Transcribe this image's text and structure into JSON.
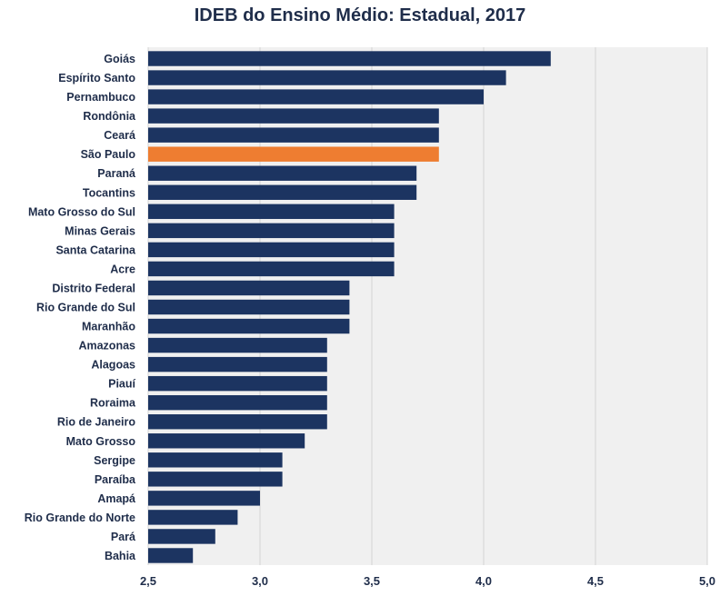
{
  "chart_data": {
    "type": "bar",
    "orientation": "horizontal",
    "title": "IDEB do Ensino Médio: Estadual, 2017",
    "xlabel": "",
    "ylabel": "",
    "xlim": [
      2.5,
      5.0
    ],
    "xticks": [
      2.5,
      3.0,
      3.5,
      4.0,
      4.5,
      5.0
    ],
    "xtick_labels": [
      "2,5",
      "3,0",
      "3,5",
      "4,0",
      "4,5",
      "5,0"
    ],
    "grid": "vertical gridlines",
    "plot_background": "#f0f0f0",
    "bar_color": "#1c3461",
    "highlight_color": "#ee7d31",
    "highlight_category": "São Paulo",
    "categories": [
      "Goiás",
      "Espírito Santo",
      "Pernambuco",
      "Rondônia",
      "Ceará",
      "São Paulo",
      "Paraná",
      "Tocantins",
      "Mato Grosso do Sul",
      "Minas Gerais",
      "Santa Catarina",
      "Acre",
      "Distrito Federal",
      "Rio Grande do Sul",
      "Maranhão",
      "Amazonas",
      "Alagoas",
      "Piauí",
      "Roraima",
      "Rio de Janeiro",
      "Mato Grosso",
      "Sergipe",
      "Paraíba",
      "Amapá",
      "Rio Grande do Norte",
      "Pará",
      "Bahia"
    ],
    "values": [
      4.3,
      4.1,
      4.0,
      3.8,
      3.8,
      3.8,
      3.7,
      3.7,
      3.6,
      3.6,
      3.6,
      3.6,
      3.4,
      3.4,
      3.4,
      3.3,
      3.3,
      3.3,
      3.3,
      3.3,
      3.2,
      3.1,
      3.1,
      3.0,
      2.9,
      2.8,
      2.7
    ]
  }
}
